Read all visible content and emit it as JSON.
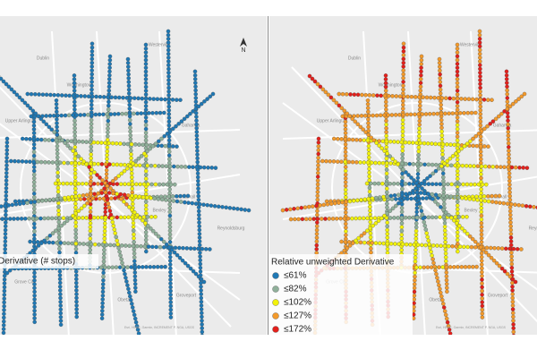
{
  "left_panel": {
    "legend_title": "Derivative (# stops)",
    "north_label": "N"
  },
  "right_panel": {
    "legend_title": "Relative unweighted Derivative",
    "legend": [
      {
        "label": "≤61%",
        "color": "#1f78b4"
      },
      {
        "label": "≤82%",
        "color": "#8fb09a"
      },
      {
        "label": "≤102%",
        "color": "#f2f20a"
      },
      {
        "label": "≤127%",
        "color": "#f39a2b"
      },
      {
        "label": "≤172%",
        "color": "#e3201c"
      }
    ]
  },
  "places": [
    "Dublin",
    "Westerville",
    "Worthington",
    "Gahanna",
    "Whitehall",
    "Reynoldsburg",
    "Grove City",
    "Obetz",
    "Groveport",
    "Upper Arlington",
    "Bexley"
  ],
  "attribution": "Esri, HERE, Garmin, INCREMENT P, NGA, USGS"
}
